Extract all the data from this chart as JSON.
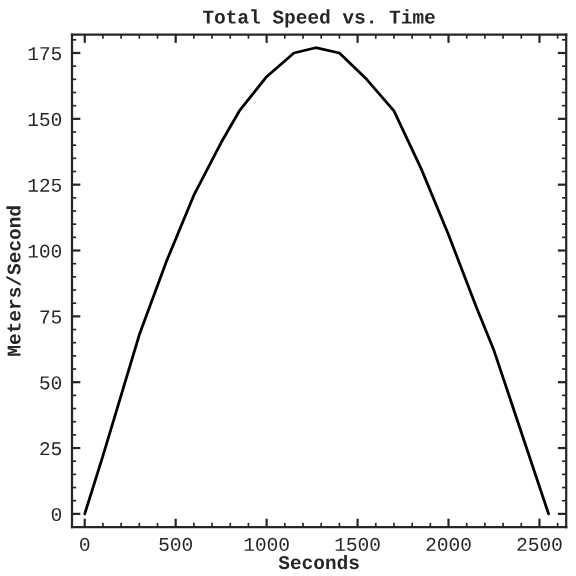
{
  "chart_data": {
    "type": "line",
    "title": "Total Speed vs. Time",
    "xlabel": "Seconds",
    "ylabel": "Meters/Second",
    "x": [
      0,
      100,
      200,
      300,
      450,
      600,
      750,
      850,
      1000,
      1150,
      1270,
      1400,
      1550,
      1700,
      1850,
      2000,
      2150,
      2250,
      2400,
      2550
    ],
    "series": [
      {
        "color": "#000000",
        "values": [
          0,
          22,
          45,
          68,
          96,
          121,
          141,
          153,
          166,
          175,
          177,
          175,
          165,
          153,
          131,
          106,
          79,
          62,
          31,
          0
        ]
      }
    ],
    "xlim": [
      -70,
      2647
    ],
    "ylim": [
      -5,
      182
    ],
    "xticks": [
      0,
      500,
      1000,
      1500,
      2000,
      2500
    ],
    "yticks": [
      0,
      25,
      50,
      75,
      100,
      125,
      150,
      175
    ],
    "grid": false,
    "legend": false,
    "marker": "none",
    "line_style": "solid"
  }
}
